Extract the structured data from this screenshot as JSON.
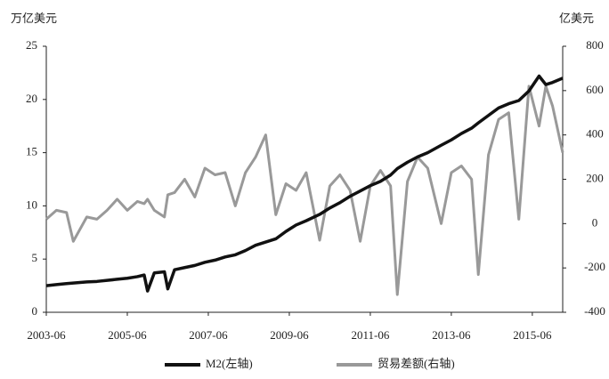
{
  "chart_data": {
    "type": "line",
    "y_label": "万亿美元",
    "y2_label": "亿美元",
    "x": [
      "2003-06",
      "2003-09",
      "2003-12",
      "2004-02",
      "2004-06",
      "2004-09",
      "2004-12",
      "2005-03",
      "2005-06",
      "2005-09",
      "2005-11",
      "2005-12",
      "2006-02",
      "2006-05",
      "2006-06",
      "2006-08",
      "2006-11",
      "2007-02",
      "2007-05",
      "2007-08",
      "2007-11",
      "2008-02",
      "2008-05",
      "2008-08",
      "2008-11",
      "2009-02",
      "2009-05",
      "2009-08",
      "2009-11",
      "2010-03",
      "2010-06",
      "2010-09",
      "2010-12",
      "2011-03",
      "2011-06",
      "2011-09",
      "2011-12",
      "2012-02",
      "2012-05",
      "2012-08",
      "2012-11",
      "2013-03",
      "2013-06",
      "2013-09",
      "2013-12",
      "2014-02",
      "2014-05",
      "2014-08",
      "2014-11",
      "2015-02",
      "2015-05",
      "2015-08",
      "2015-10",
      "2015-12",
      "2016-03"
    ],
    "xlim": [
      "2003-06",
      "2016-03"
    ],
    "xticks": [
      "2003-06",
      "2005-06",
      "2007-06",
      "2009-06",
      "2011-06",
      "2013-06",
      "2015-06"
    ],
    "ylim": [
      0,
      25
    ],
    "yticks": [
      0,
      5,
      10,
      15,
      20,
      25
    ],
    "y2lim": [
      -400,
      800
    ],
    "y2ticks": [
      -400,
      -200,
      0,
      200,
      400,
      600,
      800
    ],
    "series": [
      {
        "name": "M2(左轴)",
        "color": "#111111",
        "values": [
          2.5,
          2.6,
          2.7,
          2.75,
          2.85,
          2.9,
          3.0,
          3.1,
          3.2,
          3.35,
          3.5,
          2.0,
          3.7,
          3.8,
          2.2,
          4.0,
          4.2,
          4.4,
          4.7,
          4.9,
          5.2,
          5.4,
          5.8,
          6.3,
          6.6,
          6.9,
          7.6,
          8.2,
          8.6,
          9.2,
          9.8,
          10.3,
          10.9,
          11.4,
          11.9,
          12.3,
          12.9,
          13.5,
          14.1,
          14.6,
          15.0,
          15.7,
          16.2,
          16.8,
          17.3,
          17.8,
          18.5,
          19.2,
          19.6,
          19.9,
          20.8,
          22.2,
          21.4,
          21.6,
          22.0
        ]
      },
      {
        "name": "贸易差额(右轴)",
        "color": "#999999",
        "axis": "y2",
        "values": [
          20,
          60,
          50,
          -80,
          30,
          20,
          60,
          110,
          60,
          100,
          90,
          110,
          60,
          30,
          130,
          140,
          200,
          120,
          250,
          220,
          230,
          80,
          230,
          300,
          400,
          40,
          180,
          150,
          230,
          -75,
          170,
          220,
          150,
          -80,
          170,
          240,
          170,
          -320,
          190,
          300,
          250,
          0,
          230,
          260,
          200,
          -230,
          310,
          470,
          500,
          20,
          620,
          440,
          620,
          530,
          320
        ]
      }
    ]
  }
}
